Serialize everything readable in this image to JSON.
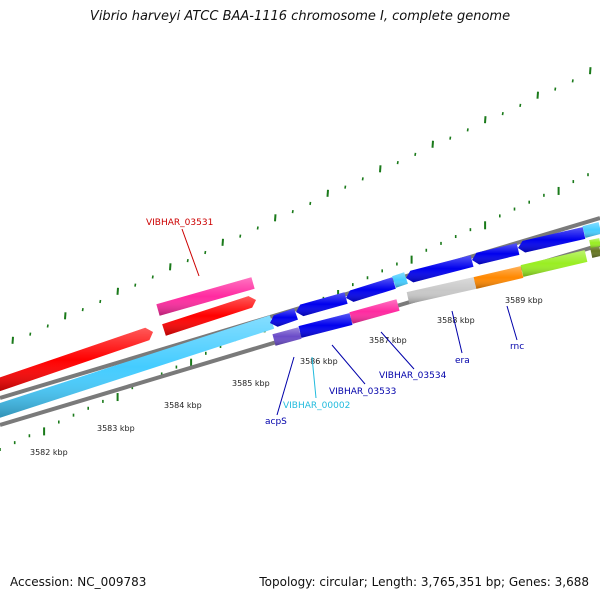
{
  "header": {
    "title": "Vibrio harveyi ATCC BAA-1116 chromosome I, complete genome"
  },
  "footer": {
    "accession": "Accession: NC_009783",
    "stats": "Topology: circular; Length: 3,765,351 bp; Genes: 3,688"
  },
  "scale": {
    "tick_labels": [
      "3582 kbp",
      "3583 kbp",
      "3584 kbp",
      "3585 kbp",
      "3586 kbp",
      "3587 kbp",
      "3588 kbp",
      "3589 kbp"
    ],
    "tick_color": "#1a7a1a"
  },
  "genes": [
    {
      "name": "VIBHAR_03531",
      "color": "#cc0000"
    },
    {
      "name": "acpS",
      "color": "#0000aa"
    },
    {
      "name": "VIBHAR_00002",
      "color": "#22bbdd"
    },
    {
      "name": "VIBHAR_03533",
      "color": "#0000aa"
    },
    {
      "name": "VIBHAR_03534",
      "color": "#0000aa"
    },
    {
      "name": "era",
      "color": "#0000aa"
    },
    {
      "name": "rnc",
      "color": "#0000aa"
    }
  ],
  "colors": {
    "red": "#ff0000",
    "pink": "#ff2aa0",
    "cyan": "#44ccff",
    "blue": "#0000ee",
    "purple": "#6a4bc8",
    "grey": "#c8c8c8",
    "orange": "#ff8800",
    "lime": "#99ee22",
    "olive": "#667722"
  }
}
